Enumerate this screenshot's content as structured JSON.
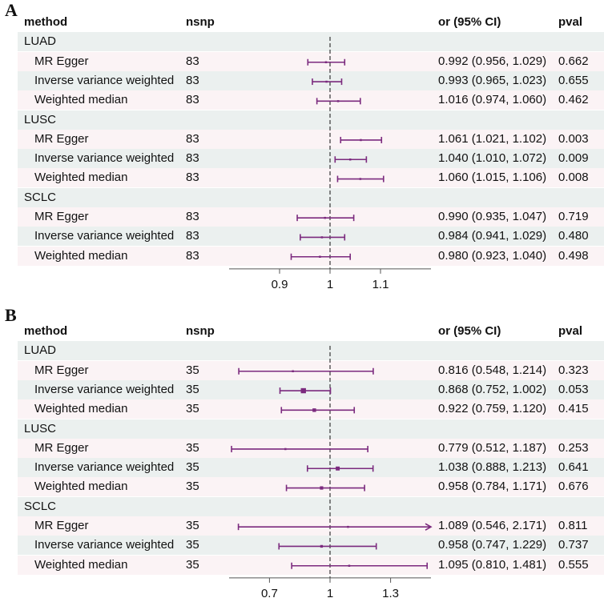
{
  "chart_data": [
    {
      "type": "forest",
      "panel": "A",
      "columns": {
        "method": "method",
        "nsnp": "nsnp",
        "or": "or (95% CI)",
        "pval": "pval"
      },
      "xlim": [
        0.8,
        1.2
      ],
      "reference_line": 1,
      "ticks": [
        0.9,
        1,
        1.1
      ],
      "tick_labels": [
        "0.9",
        "1",
        "1.1"
      ],
      "groups": [
        {
          "name": "LUAD",
          "rows": [
            {
              "method": "MR Egger",
              "nsnp": "83",
              "or": 0.992,
              "lo": 0.956,
              "hi": 1.029,
              "or_text": "0.992 (0.956, 1.029)",
              "pval": "0.662"
            },
            {
              "method": "Inverse variance weighted",
              "nsnp": "83",
              "or": 0.993,
              "lo": 0.965,
              "hi": 1.023,
              "or_text": "0.993 (0.965, 1.023)",
              "pval": "0.655"
            },
            {
              "method": "Weighted median",
              "nsnp": "83",
              "or": 1.016,
              "lo": 0.974,
              "hi": 1.06,
              "or_text": "1.016 (0.974, 1.060)",
              "pval": "0.462"
            }
          ]
        },
        {
          "name": "LUSC",
          "rows": [
            {
              "method": "MR Egger",
              "nsnp": "83",
              "or": 1.061,
              "lo": 1.021,
              "hi": 1.102,
              "or_text": "1.061 (1.021, 1.102)",
              "pval": "0.003"
            },
            {
              "method": "Inverse variance weighted",
              "nsnp": "83",
              "or": 1.04,
              "lo": 1.01,
              "hi": 1.072,
              "or_text": "1.040 (1.010, 1.072)",
              "pval": "0.009"
            },
            {
              "method": "Weighted median",
              "nsnp": "83",
              "or": 1.06,
              "lo": 1.015,
              "hi": 1.106,
              "or_text": "1.060 (1.015, 1.106)",
              "pval": "0.008"
            }
          ]
        },
        {
          "name": "SCLC",
          "rows": [
            {
              "method": "MR Egger",
              "nsnp": "83",
              "or": 0.99,
              "lo": 0.935,
              "hi": 1.047,
              "or_text": "0.990 (0.935, 1.047)",
              "pval": "0.719"
            },
            {
              "method": "Inverse variance weighted",
              "nsnp": "83",
              "or": 0.984,
              "lo": 0.941,
              "hi": 1.029,
              "or_text": "0.984 (0.941, 1.029)",
              "pval": "0.480"
            },
            {
              "method": "Weighted median",
              "nsnp": "83",
              "or": 0.98,
              "lo": 0.923,
              "hi": 1.04,
              "or_text": "0.980 (0.923, 1.040)",
              "pval": "0.498"
            }
          ]
        }
      ]
    },
    {
      "type": "forest",
      "panel": "B",
      "columns": {
        "method": "method",
        "nsnp": "nsnp",
        "or": "or (95% CI)",
        "pval": "pval"
      },
      "xlim": [
        0.5,
        1.5
      ],
      "reference_line": 1,
      "ticks": [
        0.7,
        1,
        1.3
      ],
      "tick_labels": [
        "0.7",
        "1",
        "1.3"
      ],
      "groups": [
        {
          "name": "LUAD",
          "rows": [
            {
              "method": "MR Egger",
              "nsnp": "35",
              "or": 0.816,
              "lo": 0.548,
              "hi": 1.214,
              "or_text": "0.816 (0.548, 1.214)",
              "pval": "0.323"
            },
            {
              "method": "Inverse variance weighted",
              "nsnp": "35",
              "or": 0.868,
              "lo": 0.752,
              "hi": 1.002,
              "or_text": "0.868 (0.752, 1.002)",
              "pval": "0.053"
            },
            {
              "method": "Weighted median",
              "nsnp": "35",
              "or": 0.922,
              "lo": 0.759,
              "hi": 1.12,
              "or_text": "0.922 (0.759, 1.120)",
              "pval": "0.415"
            }
          ]
        },
        {
          "name": "LUSC",
          "rows": [
            {
              "method": "MR Egger",
              "nsnp": "35",
              "or": 0.779,
              "lo": 0.512,
              "hi": 1.187,
              "or_text": "0.779 (0.512, 1.187)",
              "pval": "0.253"
            },
            {
              "method": "Inverse variance weighted",
              "nsnp": "35",
              "or": 1.038,
              "lo": 0.888,
              "hi": 1.213,
              "or_text": "1.038 (0.888, 1.213)",
              "pval": "0.641"
            },
            {
              "method": "Weighted median",
              "nsnp": "35",
              "or": 0.958,
              "lo": 0.784,
              "hi": 1.171,
              "or_text": "0.958 (0.784, 1.171)",
              "pval": "0.676"
            }
          ]
        },
        {
          "name": "SCLC",
          "rows": [
            {
              "method": "MR Egger",
              "nsnp": "35",
              "or": 1.089,
              "lo": 0.546,
              "hi": 2.171,
              "or_text": "1.089 (0.546, 2.171)",
              "pval": "0.811"
            },
            {
              "method": "Inverse variance weighted",
              "nsnp": "35",
              "or": 0.958,
              "lo": 0.747,
              "hi": 1.229,
              "or_text": "0.958 (0.747, 1.229)",
              "pval": "0.737"
            },
            {
              "method": "Weighted median",
              "nsnp": "35",
              "or": 1.095,
              "lo": 0.81,
              "hi": 1.481,
              "or_text": "1.095 (0.810, 1.481)",
              "pval": "0.555"
            }
          ]
        }
      ]
    }
  ],
  "colors": {
    "ci": "#7b2a7e",
    "ref_line": "#444444",
    "axis": "#555555",
    "row_odd": "#fbf3f5",
    "row_even": "#ebf0ef"
  }
}
